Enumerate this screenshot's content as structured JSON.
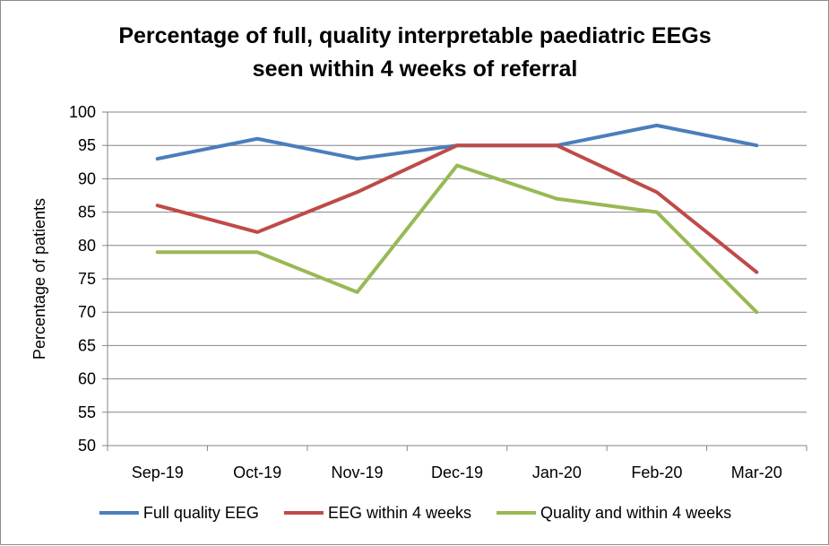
{
  "chart_data": {
    "type": "line",
    "title_lines": [
      "Percentage of full, quality interpretable paediatric EEGs",
      "seen within 4 weeks of referral"
    ],
    "xlabel": "",
    "ylabel": "Percentage of patients",
    "categories": [
      "Sep-19",
      "Oct-19",
      "Nov-19",
      "Dec-19",
      "Jan-20",
      "Feb-20",
      "Mar-20"
    ],
    "ylim": [
      50,
      100
    ],
    "yticks": [
      "50",
      "55",
      "60",
      "65",
      "70",
      "75",
      "80",
      "85",
      "90",
      "95",
      "100"
    ],
    "grid": true,
    "legend_position": "bottom",
    "series": [
      {
        "name": "Full quality EEG",
        "color": "#4a7ebb",
        "values": [
          93,
          96,
          93,
          95,
          95,
          98,
          95
        ]
      },
      {
        "name": "EEG within 4 weeks",
        "color": "#be4b48",
        "values": [
          86,
          82,
          88,
          95,
          95,
          88,
          76
        ]
      },
      {
        "name": "Quality and within 4 weeks",
        "color": "#98b954",
        "values": [
          79,
          79,
          73,
          92,
          87,
          85,
          70
        ]
      }
    ]
  }
}
